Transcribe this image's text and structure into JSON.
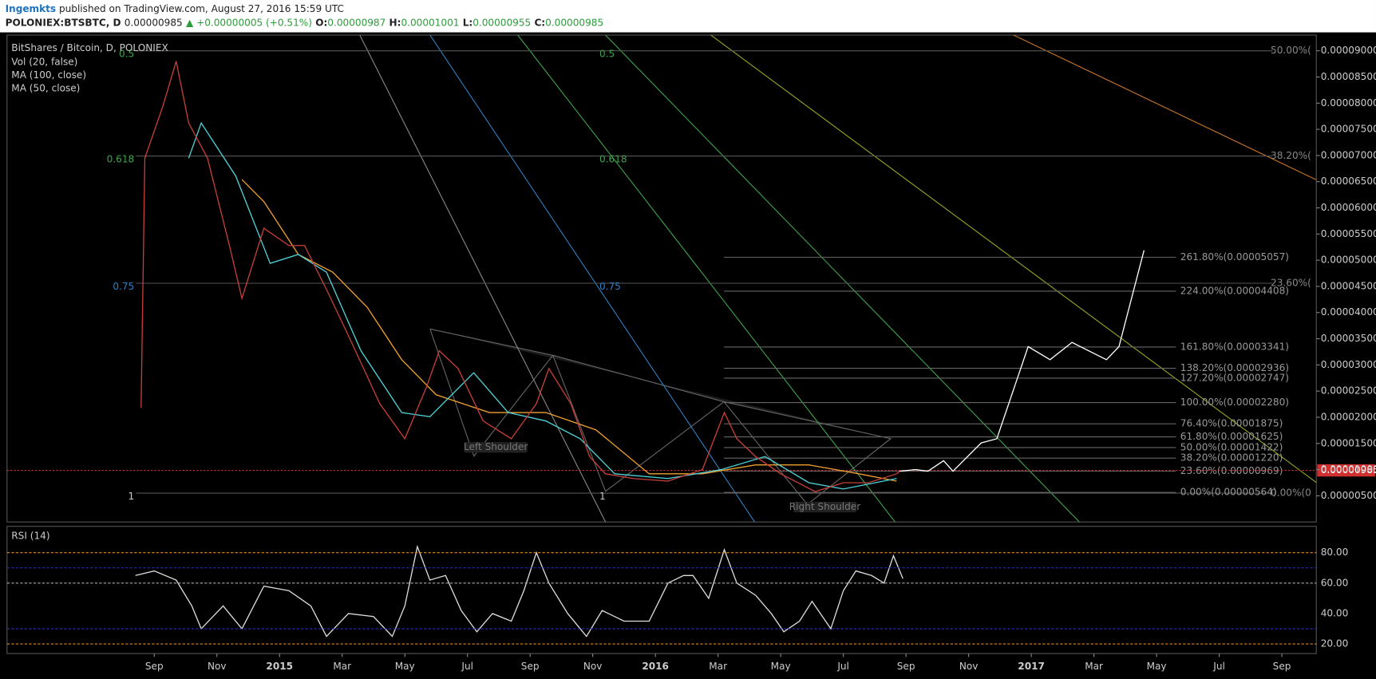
{
  "header": {
    "author": "Ingemkts",
    "published": "published on TradingView.com, August 27, 2016 15:59 UTC",
    "symbol": "POLONIEX:BTSBTC, D",
    "last": "0.00000985",
    "change": "▲ +0.00000005 (+0.51%)",
    "open_label": "O:",
    "open": "0.00000987",
    "high_label": "H:",
    "high": "0.00001001",
    "low_label": "L:",
    "low": "0.00000955",
    "close_label": "C:",
    "close": "0.00000985"
  },
  "chart_data": [
    {
      "type": "line",
      "title": "BitShares / Bitcoin, D, POLONIEX",
      "indicator_label": "Vol (20, false)",
      "xlim": [
        -3.7,
        38.1
      ],
      "xticks": [
        {
          "value": 1,
          "label": "Sep"
        },
        {
          "value": 3,
          "label": "Nov"
        },
        {
          "value": 5,
          "label": "2015"
        },
        {
          "value": 7,
          "label": "Mar"
        },
        {
          "value": 9,
          "label": "May"
        },
        {
          "value": 11,
          "label": "Jul"
        },
        {
          "value": 13,
          "label": "Sep"
        },
        {
          "value": 15,
          "label": "Nov"
        },
        {
          "value": 17,
          "label": "2016"
        },
        {
          "value": 19,
          "label": "Mar"
        },
        {
          "value": 21,
          "label": "May"
        },
        {
          "value": 23,
          "label": "Jul"
        },
        {
          "value": 25,
          "label": "Sep"
        },
        {
          "value": 27,
          "label": "Nov"
        },
        {
          "value": 29,
          "label": "2017"
        },
        {
          "value": 31,
          "label": "Mar"
        },
        {
          "value": 33,
          "label": "May"
        },
        {
          "value": 35,
          "label": "Jul"
        },
        {
          "value": 37,
          "label": "Sep"
        }
      ],
      "ylim": [
        0,
        9.3e-05
      ],
      "yticks": [
        {
          "value": 5e-06,
          "label": "0.00000500"
        },
        {
          "value": 1e-05,
          "label": "0.00001000"
        },
        {
          "value": 1.5e-05,
          "label": "0.00001500"
        },
        {
          "value": 2e-05,
          "label": "0.00002000"
        },
        {
          "value": 2.5e-05,
          "label": "0.00002500"
        },
        {
          "value": 3e-05,
          "label": "0.00003000"
        },
        {
          "value": 3.5e-05,
          "label": "0.00003500"
        },
        {
          "value": 4e-05,
          "label": "0.00004000"
        },
        {
          "value": 4.5e-05,
          "label": "0.00004500"
        },
        {
          "value": 5e-05,
          "label": "0.00005000"
        },
        {
          "value": 5.5e-05,
          "label": "0.00005500"
        },
        {
          "value": 6e-05,
          "label": "0.00006000"
        },
        {
          "value": 6.5e-05,
          "label": "0.00006500"
        },
        {
          "value": 7e-05,
          "label": "0.00007000"
        },
        {
          "value": 7.5e-05,
          "label": "0.00007500"
        },
        {
          "value": 8e-05,
          "label": "0.00008000"
        },
        {
          "value": 8.5e-05,
          "label": "0.00008500"
        },
        {
          "value": 9e-05,
          "label": "0.00009000"
        }
      ],
      "last_price": {
        "value": 9.85e-06,
        "label": "0.00000985"
      },
      "series": [
        {
          "name": "MA (100, close)",
          "color": "#f0a030",
          "x": [
            3.8,
            4.5,
            5.6,
            6.7,
            7.8,
            8.9,
            10.0,
            11.7,
            13.5,
            15.1,
            16.8,
            18.5,
            20.2,
            21.9,
            23.5,
            24.7
          ],
          "values": [
            6.54e-05,
            6.12e-05,
            5.11e-05,
            4.77e-05,
            4.1e-05,
            3.1e-05,
            2.43e-05,
            2.09e-05,
            2.09e-05,
            1.76e-05,
            9.2e-06,
            9.2e-06,
            1.09e-05,
            1.09e-05,
            9.2e-06,
            7.8e-06
          ]
        },
        {
          "name": "MA (50, close)",
          "color": "#4fd3d9",
          "x": [
            2.1,
            2.5,
            3.6,
            4.7,
            5.6,
            6.5,
            7.6,
            8.9,
            9.8,
            11.2,
            12.3,
            13.5,
            14.6,
            15.7,
            17.4,
            19.1,
            20.5,
            21.9,
            23.0,
            24.7
          ],
          "values": [
            6.95e-05,
            7.62e-05,
            6.61e-05,
            4.94e-05,
            5.11e-05,
            4.77e-05,
            3.27e-05,
            2.09e-05,
            2.01e-05,
            2.85e-05,
            2.09e-05,
            1.93e-05,
            1.59e-05,
            9.2e-06,
            8.3e-06,
            1e-05,
            1.25e-05,
            7.5e-06,
            6.3e-06,
            8.3e-06
          ]
        },
        {
          "color": "#c8403a",
          "x": [
            0.58,
            0.7,
            1.28,
            1.7,
            2.1,
            2.7,
            3.4,
            3.8,
            4.5,
            5.3,
            5.8,
            6.5,
            7.3,
            8.2,
            9.0,
            9.7,
            10.1,
            10.7,
            11.5,
            12.4,
            13.2,
            13.6,
            14.3,
            14.9,
            15.4,
            16.3,
            17.4,
            18.5,
            19.2,
            19.6,
            20.2,
            21.0,
            22.1,
            23.0,
            23.8,
            24.7,
            24.8
          ],
          "values": [
            2.18e-05,
            6.95e-05,
            7.95e-05,
            8.8e-05,
            7.62e-05,
            6.95e-05,
            5.28e-05,
            4.27e-05,
            5.61e-05,
            5.28e-05,
            5.28e-05,
            4.44e-05,
            3.43e-05,
            2.26e-05,
            1.59e-05,
            2.59e-05,
            3.27e-05,
            2.93e-05,
            1.93e-05,
            1.59e-05,
            2.26e-05,
            2.93e-05,
            2.26e-05,
            1.25e-05,
            9.2e-06,
            8.3e-06,
            7.8e-06,
            1e-05,
            2.09e-05,
            1.59e-05,
            1.25e-05,
            9.2e-06,
            5.8e-06,
            7.5e-06,
            7.5e-06,
            9.2e-06,
            9.7e-06
          ]
        },
        {
          "color": "#ffffff",
          "x": [
            24.8,
            25.3,
            25.7,
            26.2,
            26.5,
            27.4,
            27.9,
            28.9,
            29.6,
            30.3,
            31.4,
            31.8,
            32.6
          ],
          "values": [
            9.7e-06,
            1e-05,
            9.7e-06,
            1.17e-05,
            9.7e-06,
            1.51e-05,
            1.59e-05,
            3.35e-05,
            3.1e-05,
            3.43e-05,
            3.1e-05,
            3.35e-05,
            5.19e-05
          ]
        }
      ],
      "fan_levels": [
        {
          "label": "0.5",
          "value": 9e-05,
          "color": "#3fa34d"
        },
        {
          "label": "0.618",
          "value": 6.99e-05,
          "color": "#3fa34d"
        },
        {
          "label": "0.75",
          "value": 4.56e-05,
          "color": "#2f7fc4"
        },
        {
          "label": "1",
          "value": 5.5e-06,
          "color": "#cccccc"
        }
      ],
      "retracement_b": [
        {
          "label": "50.00%(",
          "value": 9e-05
        },
        {
          "label": "38.20%(",
          "value": 6.99e-05
        },
        {
          "label": "23.60%(",
          "value": 4.56e-05
        },
        {
          "label": "0.00%(0",
          "value": 5.5e-06
        }
      ],
      "fib_extension": [
        {
          "label": "261.80%(0.00005057)",
          "value": 5.057e-05
        },
        {
          "label": "224.00%(0.00004408)",
          "value": 4.408e-05
        },
        {
          "label": "161.80%(0.00003341)",
          "value": 3.341e-05
        },
        {
          "label": "138.20%(0.00002936)",
          "value": 2.936e-05
        },
        {
          "label": "127.20%(0.00002747)",
          "value": 2.747e-05
        },
        {
          "label": "100.00%(0.00002280)",
          "value": 2.28e-05
        },
        {
          "label": "76.40%(0.00001875)",
          "value": 1.875e-05
        },
        {
          "label": "61.80%(0.00001625)",
          "value": 1.625e-05
        },
        {
          "label": "50.00%(0.00001422)",
          "value": 1.422e-05
        },
        {
          "label": "38.20%(0.00001220)",
          "value": 1.22e-05
        },
        {
          "label": "23.60%(0.00000969)",
          "value": 9.69e-06
        },
        {
          "label": "0.00%(0.00000564)",
          "value": 5.64e-06
        }
      ],
      "annotations": [
        "Left Shoulder",
        "Right Shoulder"
      ]
    },
    {
      "type": "line",
      "title": "RSI (14)",
      "ylim": [
        13.7,
        97.3
      ],
      "yticks": [
        {
          "value": 20,
          "label": "20.00"
        },
        {
          "value": 40,
          "label": "40.00"
        },
        {
          "value": 60,
          "label": "60.00"
        },
        {
          "value": 80,
          "label": "80.00"
        }
      ],
      "band_levels": [
        30,
        70
      ],
      "series": [
        {
          "color": "#dddddd",
          "x": [
            0.4,
            1,
            1.7,
            2.2,
            2.5,
            3.2,
            3.8,
            4.5,
            5.3,
            6,
            6.5,
            7.2,
            8,
            8.6,
            9.0,
            9.4,
            9.8,
            10.3,
            10.8,
            11.3,
            11.8,
            12.4,
            12.8,
            13.2,
            13.6,
            14.2,
            14.8,
            15.3,
            16,
            16.8,
            17.4,
            17.9,
            18.2,
            18.7,
            19.2,
            19.6,
            20.2,
            20.7,
            21.1,
            21.6,
            22,
            22.6,
            23,
            23.4,
            23.9,
            24.3,
            24.6,
            24.9
          ],
          "values": [
            65,
            68,
            62,
            45,
            30,
            45,
            30,
            58,
            55,
            45,
            25,
            40,
            38,
            25,
            45,
            84,
            62,
            65,
            42,
            28,
            40,
            35,
            55,
            80,
            60,
            40,
            25,
            42,
            35,
            35,
            60,
            65,
            65,
            50,
            82,
            60,
            52,
            40,
            28,
            35,
            48,
            30,
            55,
            68,
            65,
            60,
            78,
            63
          ]
        }
      ]
    }
  ]
}
